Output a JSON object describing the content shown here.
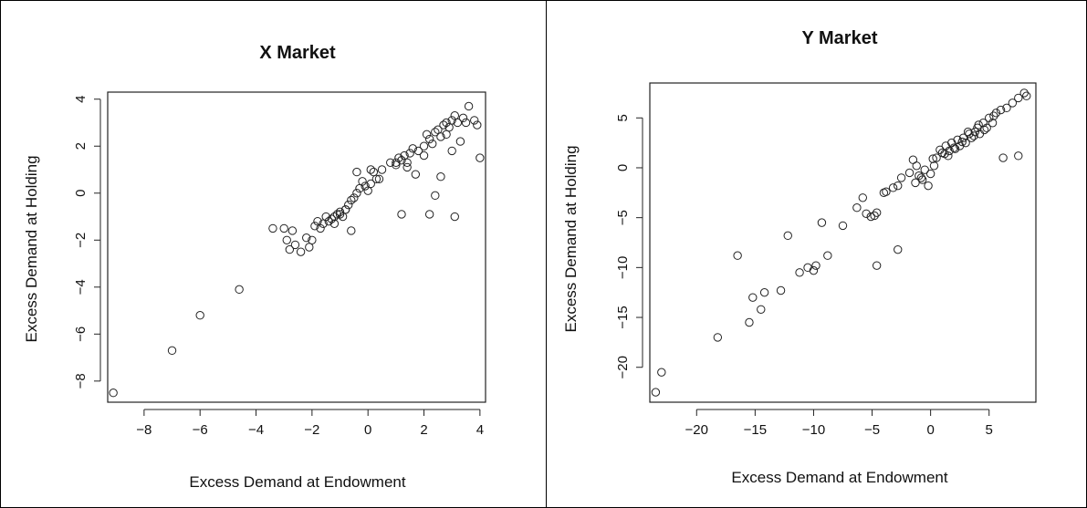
{
  "chart_data": [
    {
      "type": "scatter",
      "title": "X Market",
      "xlabel": "Excess Demand at Endowment",
      "ylabel": "Excess Demand at Holding",
      "xlim": [
        -9.3,
        4.2
      ],
      "ylim": [
        -8.9,
        4.3
      ],
      "xticks": [
        -8,
        -6,
        -4,
        -2,
        0,
        2,
        4
      ],
      "yticks": [
        -8,
        -6,
        -4,
        -2,
        0,
        2,
        4
      ],
      "x": [
        -9.1,
        -7.0,
        -6.0,
        -4.6,
        -3.4,
        -3.0,
        -2.9,
        -2.8,
        -2.7,
        -2.6,
        -2.4,
        -2.1,
        -2.0,
        -1.9,
        -1.8,
        -1.7,
        -1.6,
        -1.5,
        -1.4,
        -1.3,
        -1.2,
        -1.1,
        -1.0,
        -0.9,
        -0.8,
        -0.7,
        -0.6,
        -0.5,
        -0.4,
        -0.3,
        -0.2,
        -0.1,
        0.0,
        0.1,
        0.2,
        0.3,
        0.5,
        0.8,
        1.0,
        1.1,
        1.2,
        1.3,
        1.4,
        1.5,
        1.6,
        1.8,
        2.0,
        2.1,
        2.2,
        2.3,
        2.4,
        2.5,
        2.6,
        2.7,
        2.8,
        2.9,
        3.0,
        3.1,
        3.2,
        3.3,
        3.4,
        3.6,
        3.8,
        3.9,
        4.0,
        1.2,
        2.2,
        3.1,
        2.6,
        -0.6,
        0.1,
        -1.2,
        -1.0,
        -0.8,
        1.4,
        1.7,
        2.0,
        2.8,
        3.5,
        -2.2,
        -0.4,
        0.4,
        1.0,
        2.4,
        3.0
      ],
      "y": [
        -8.5,
        -6.7,
        -5.2,
        -4.1,
        -1.5,
        -1.5,
        -2.0,
        -2.4,
        -1.6,
        -2.2,
        -2.5,
        -2.3,
        -2.0,
        -1.4,
        -1.2,
        -1.5,
        -1.3,
        -1.0,
        -1.2,
        -1.1,
        -1.0,
        -0.9,
        -0.8,
        -1.0,
        -0.7,
        -0.5,
        -0.3,
        -0.2,
        0.0,
        0.2,
        0.5,
        0.3,
        0.1,
        0.4,
        0.9,
        0.6,
        1.0,
        1.3,
        1.2,
        1.5,
        1.4,
        1.6,
        1.3,
        1.7,
        1.9,
        1.8,
        2.0,
        2.5,
        2.3,
        2.1,
        2.6,
        2.7,
        2.4,
        2.9,
        3.0,
        2.8,
        3.1,
        3.3,
        3.0,
        2.2,
        3.2,
        3.7,
        3.1,
        2.9,
        1.5,
        -0.9,
        -0.9,
        -1.0,
        0.7,
        -1.6,
        1.0,
        -1.3,
        -0.9,
        -0.7,
        1.1,
        0.8,
        1.6,
        2.5,
        3.0,
        -1.9,
        0.9,
        0.6,
        1.3,
        -0.1,
        1.8
      ]
    },
    {
      "type": "scatter",
      "title": "Y Market",
      "xlabel": "Excess Demand at Endowment",
      "ylabel": "Excess Demand at Holding",
      "xlim": [
        -24.0,
        9.0
      ],
      "ylim": [
        -23.5,
        8.5
      ],
      "xticks": [
        -20,
        -15,
        -10,
        -5,
        0,
        5
      ],
      "yticks": [
        -20,
        -15,
        -10,
        -5,
        0,
        5
      ],
      "x": [
        -23.5,
        -23.0,
        -18.2,
        -16.5,
        -15.5,
        -15.2,
        -14.5,
        -14.2,
        -12.8,
        -12.2,
        -11.2,
        -10.5,
        -10.0,
        -9.8,
        -9.3,
        -8.8,
        -7.5,
        -6.3,
        -5.8,
        -5.5,
        -5.1,
        -4.8,
        -4.6,
        -4.0,
        -3.8,
        -3.2,
        -2.8,
        -2.5,
        -1.8,
        -1.5,
        -1.3,
        -1.0,
        -0.8,
        -0.5,
        -0.2,
        0.0,
        0.3,
        0.5,
        0.8,
        1.0,
        1.3,
        1.5,
        1.8,
        2.0,
        2.3,
        2.5,
        2.8,
        3.0,
        3.3,
        3.5,
        3.8,
        4.0,
        4.2,
        4.5,
        4.8,
        5.0,
        5.3,
        5.6,
        6.0,
        6.5,
        7.0,
        7.5,
        8.0,
        8.2,
        6.2,
        7.5,
        -4.6,
        -2.8,
        -0.7,
        3.7,
        4.6,
        1.2,
        2.1,
        2.7,
        3.2,
        4.1,
        5.4,
        -1.2,
        0.2,
        1.6
      ],
      "y": [
        -22.5,
        -20.5,
        -17.0,
        -8.8,
        -15.5,
        -13.0,
        -14.2,
        -12.5,
        -12.3,
        -6.8,
        -10.5,
        -10.0,
        -10.3,
        -9.8,
        -5.5,
        -8.8,
        -5.8,
        -4.0,
        -3.0,
        -4.6,
        -4.9,
        -4.8,
        -4.5,
        -2.5,
        -2.4,
        -2.0,
        -1.8,
        -1.0,
        -0.5,
        0.8,
        -1.5,
        -0.8,
        -1.0,
        -0.2,
        -1.8,
        -0.6,
        0.2,
        1.0,
        1.8,
        1.5,
        2.2,
        1.2,
        2.5,
        2.0,
        2.8,
        2.2,
        3.0,
        2.5,
        3.4,
        3.0,
        3.6,
        4.0,
        3.4,
        4.5,
        4.0,
        5.0,
        4.5,
        5.5,
        5.8,
        6.0,
        6.5,
        7.0,
        7.5,
        7.2,
        1.0,
        1.2,
        -9.8,
        -8.2,
        -1.2,
        3.2,
        3.8,
        1.4,
        1.9,
        2.6,
        3.6,
        4.3,
        5.2,
        0.2,
        0.9,
        1.7
      ]
    }
  ]
}
